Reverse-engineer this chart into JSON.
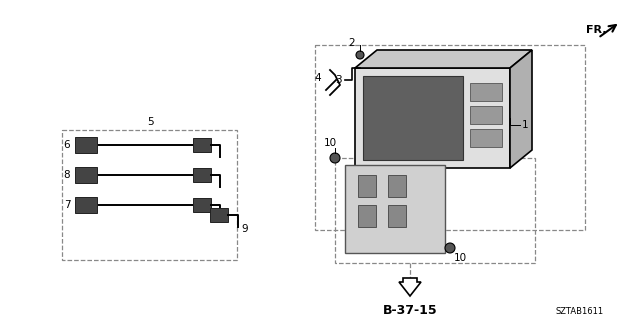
{
  "bg_color": "#ffffff",
  "line_color": "#000000",
  "dash_color": "#666666",
  "fr_label": "FR.",
  "ref_label": "B-37-15",
  "watermark": "SZTAB1611",
  "figsize": [
    6.4,
    3.2
  ],
  "dpi": 100
}
